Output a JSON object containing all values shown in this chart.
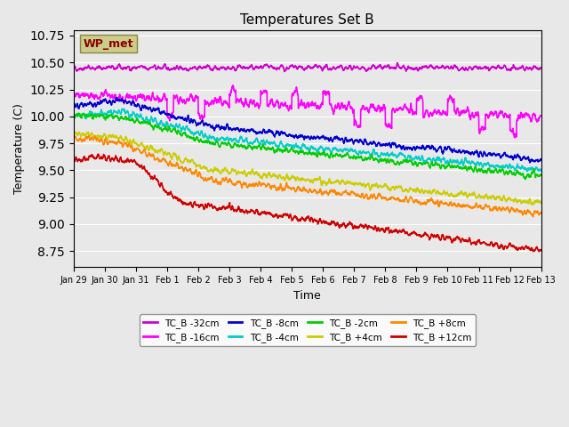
{
  "title": "Temperatures Set B",
  "xlabel": "Time",
  "ylabel": "Temperature (C)",
  "ylim": [
    8.6,
    10.8
  ],
  "background_color": "#e8e8e8",
  "series": [
    {
      "label": "TC_B -32cm",
      "color": "#cc00cc",
      "lw": 1.2
    },
    {
      "label": "TC_B -16cm",
      "color": "#ff00ff",
      "lw": 1.2
    },
    {
      "label": "TC_B -8cm",
      "color": "#0000cc",
      "lw": 1.2
    },
    {
      "label": "TC_B -4cm",
      "color": "#00cccc",
      "lw": 1.2
    },
    {
      "label": "TC_B -2cm",
      "color": "#00cc00",
      "lw": 1.2
    },
    {
      "label": "TC_B +4cm",
      "color": "#cccc00",
      "lw": 1.2
    },
    {
      "label": "TC_B +8cm",
      "color": "#ff8800",
      "lw": 1.2
    },
    {
      "label": "TC_B +12cm",
      "color": "#cc0000",
      "lw": 1.2
    }
  ],
  "xtick_labels": [
    "Jan 29",
    "Jan 30",
    "Jan 31",
    "Feb 1",
    "Feb 2",
    "Feb 3",
    "Feb 4",
    "Feb 5",
    "Feb 6",
    "Feb 7",
    "Feb 8",
    "Feb 9",
    "Feb 10",
    "Feb 11",
    "Feb 12",
    "Feb 13"
  ],
  "wp_met_box_color": "#cccc88",
  "wp_met_text_color": "#880000"
}
